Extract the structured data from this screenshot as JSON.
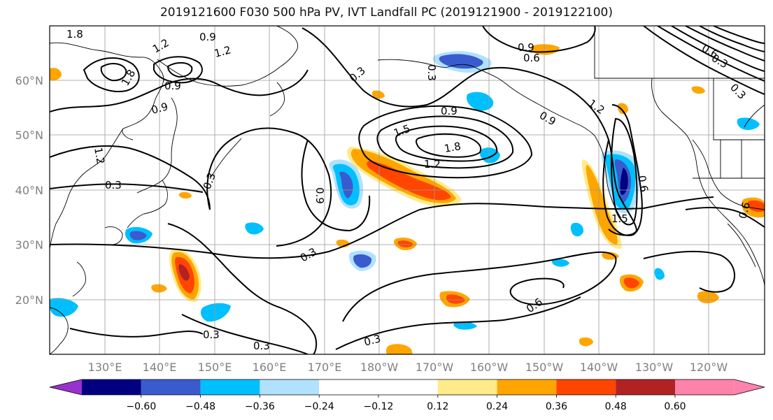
{
  "title": "2019121600 F030 500 hPa PV, IVT Landfall PC (2019121900 - 2019122100)",
  "lat_labels": [
    "60°N",
    "50°N",
    "40°N",
    "30°N",
    "20°N"
  ],
  "lon_labels": [
    "130°E",
    "140°E",
    "150°E",
    "160°E",
    "170°E",
    "180°W",
    "170°W",
    "160°W",
    "150°W",
    "140°W",
    "130°W",
    "120°W"
  ],
  "colorbar": {
    "colors": [
      "#9932cc",
      "#000080",
      "#3a5bcd",
      "#00bfff",
      "#b0e2ff",
      "#ffffff",
      "#ffeb8a",
      "#ffa500",
      "#ff4500",
      "#b22222",
      "#ff82ab"
    ],
    "tick_labels": [
      "−0.60",
      "−0.48",
      "−0.36",
      "−0.24",
      "−0.12",
      "0.12",
      "0.24",
      "0.36",
      "0.48",
      "0.60"
    ]
  },
  "contour_labels": [
    "1.8",
    "0.9",
    "1.2",
    "1.2",
    "1.8",
    "0.9",
    "0.3",
    "0.9",
    "0.6",
    "0.3",
    "0.9",
    "1.5",
    "0.9",
    "1.8",
    "0.9",
    "1.2",
    "1.2",
    "1.2",
    "0.3",
    "0.3",
    "0.9",
    "0.6",
    "1.5",
    "0.3",
    "0.6",
    "0.3",
    "0.3",
    "0.3",
    "0.6",
    "0.3",
    "0.6",
    "0.3"
  ]
}
